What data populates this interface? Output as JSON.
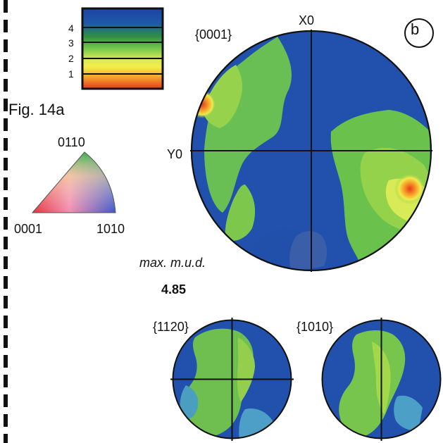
{
  "figure": {
    "side_label": "Fig. 14a",
    "panel_label": "b"
  },
  "legend": {
    "tick_labels": [
      "4",
      "3",
      "2",
      "1"
    ],
    "colors": [
      "#1f4aa8",
      "#2f8f42",
      "#5fc24b",
      "#f2ee55",
      "#f59a2a",
      "#e63b20"
    ]
  },
  "ipf_key": {
    "top_label": "0110",
    "left_label": "0001",
    "right_label": "1010"
  },
  "main_pole_figure": {
    "title": "{0001}",
    "x_axis_label": "X0",
    "y_axis_label": "Y0",
    "max_label": "max. m.u.d.",
    "max_value": "4.85"
  },
  "small_pole_figures": [
    {
      "title": "{1120}"
    },
    {
      "title": "{1010}"
    }
  ]
}
